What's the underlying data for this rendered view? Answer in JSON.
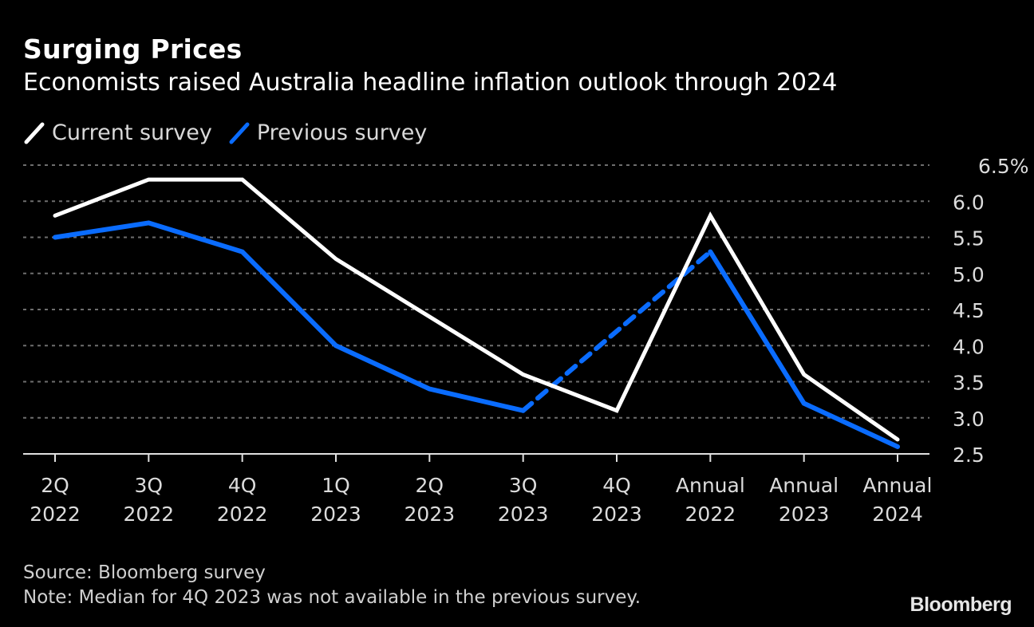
{
  "header": {
    "title": "Surging Prices",
    "subtitle": "Economists raised Australia headline inflation outlook through 2024"
  },
  "legend": [
    {
      "label": "Current survey",
      "color": "#ffffff"
    },
    {
      "label": "Previous survey",
      "color": "#0a6cff"
    }
  ],
  "footer": {
    "source": "Source: Bloomberg survey",
    "note": "Note: Median for 4Q 2023 was not available in the previous survey."
  },
  "logo": "Bloomberg",
  "chart_data": {
    "type": "line",
    "title": "Surging Prices",
    "subtitle": "Economists raised Australia headline inflation outlook through 2024",
    "categories": [
      [
        "2Q",
        "2022"
      ],
      [
        "3Q",
        "2022"
      ],
      [
        "4Q",
        "2022"
      ],
      [
        "1Q",
        "2023"
      ],
      [
        "2Q",
        "2023"
      ],
      [
        "3Q",
        "2023"
      ],
      [
        "4Q",
        "2023"
      ],
      [
        "Annual",
        "2022"
      ],
      [
        "Annual",
        "2023"
      ],
      [
        "Annual",
        "2024"
      ]
    ],
    "series": [
      {
        "name": "Current survey",
        "color": "#ffffff",
        "values": [
          5.8,
          6.3,
          6.3,
          5.2,
          4.4,
          3.6,
          3.1,
          5.8,
          3.6,
          2.7
        ]
      },
      {
        "name": "Previous survey",
        "color": "#0a6cff",
        "values": [
          5.5,
          5.7,
          5.3,
          4.0,
          3.4,
          3.1,
          null,
          5.3,
          3.2,
          2.6
        ],
        "gap_style": "dashed"
      }
    ],
    "yticks": [
      "6.5%",
      "6.0",
      "5.5",
      "5.0",
      "4.5",
      "4.0",
      "3.5",
      "3.0",
      "2.5"
    ],
    "ytick_values": [
      6.5,
      6.0,
      5.5,
      5.0,
      4.5,
      4.0,
      3.5,
      3.0,
      2.5
    ],
    "ylim": [
      2.5,
      6.5
    ],
    "yaxis_position": "right",
    "grid": true,
    "legend_position": "top-left",
    "xlabel": "",
    "ylabel": ""
  }
}
